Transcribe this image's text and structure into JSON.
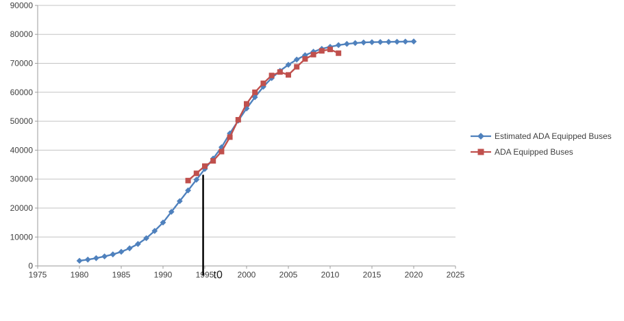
{
  "chart_data": {
    "type": "line",
    "title": "",
    "xlabel": "",
    "ylabel": "",
    "xlim": [
      1975,
      2025
    ],
    "ylim": [
      0,
      90000
    ],
    "x_ticks": [
      1975,
      1980,
      1985,
      1990,
      1995,
      2000,
      2005,
      2010,
      2015,
      2020,
      2025
    ],
    "y_ticks": [
      0,
      10000,
      20000,
      30000,
      40000,
      50000,
      60000,
      70000,
      80000,
      90000
    ],
    "grid": "horizontal",
    "legend_position": "right",
    "series": [
      {
        "name": "Estimated ADA Equipped Buses",
        "color": "#4F81BD",
        "marker": "diamond",
        "x": [
          1980,
          1981,
          1982,
          1983,
          1984,
          1985,
          1986,
          1987,
          1988,
          1989,
          1990,
          1991,
          1992,
          1993,
          1994,
          1995,
          1996,
          1997,
          1998,
          1999,
          2000,
          2001,
          2002,
          2003,
          2004,
          2005,
          2006,
          2007,
          2008,
          2009,
          2010,
          2011,
          2012,
          2013,
          2014,
          2015,
          2016,
          2017,
          2018,
          2019,
          2020
        ],
        "values": [
          1800,
          2200,
          2700,
          3300,
          4000,
          4900,
          6100,
          7600,
          9600,
          12100,
          15000,
          18700,
          22400,
          26100,
          29800,
          33500,
          37100,
          41000,
          45800,
          50200,
          54400,
          58300,
          61900,
          64900,
          67400,
          69500,
          71300,
          72800,
          74000,
          75000,
          75700,
          76300,
          76700,
          77000,
          77200,
          77300,
          77350,
          77400,
          77450,
          77500,
          77550
        ]
      },
      {
        "name": "ADA Equipped Buses",
        "color": "#C0504D",
        "marker": "square",
        "x": [
          1993,
          1994,
          1995,
          1996,
          1997,
          1998,
          1999,
          2000,
          2001,
          2002,
          2003,
          2004,
          2005,
          2006,
          2007,
          2008,
          2009,
          2010,
          2011
        ],
        "values": [
          29500,
          32000,
          34500,
          36300,
          39500,
          44500,
          50500,
          56000,
          60000,
          63100,
          65800,
          67000,
          66000,
          68800,
          71500,
          73000,
          74300,
          74800,
          73500
        ]
      }
    ],
    "annotation": {
      "label": "t0",
      "year": 1994.8,
      "top_value": 31500
    }
  },
  "colors": {
    "gridline": "#c3c3c3",
    "axis": "#9b9b9b",
    "tick_label": "#3f3f3f",
    "annotation_line": "#000000",
    "background": "#ffffff"
  }
}
